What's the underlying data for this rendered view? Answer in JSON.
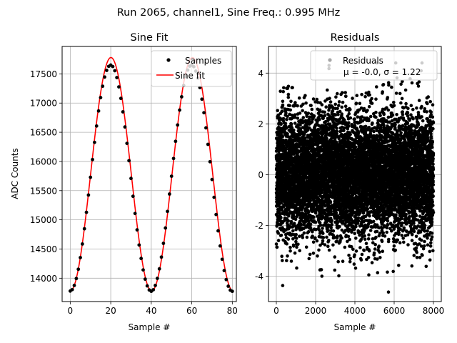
{
  "figure": {
    "suptitle": "Run 2065, channel1, Sine Freq.: 0.995 MHz"
  },
  "chart_data": [
    {
      "type": "line",
      "title": "Sine Fit",
      "xlabel": "Sample #",
      "ylabel": "ADC Counts",
      "xlim": [
        -4,
        82
      ],
      "ylim": [
        13600,
        17970
      ],
      "xticks": [
        0,
        20,
        40,
        60,
        80
      ],
      "yticks": [
        14000,
        14500,
        15000,
        15500,
        16000,
        16500,
        17000,
        17500
      ],
      "grid": true,
      "legend_position": "top-right",
      "sine_model": {
        "amplitude": 2000,
        "offset": 15780,
        "period_samples": 40.2,
        "peak_sample": 20.1
      },
      "series": [
        {
          "name": "Samples",
          "style": "black dot markers",
          "color": "#000000",
          "x": [
            0,
            1,
            2,
            3,
            4,
            5,
            6,
            7,
            8,
            9,
            10,
            11,
            12,
            13,
            14,
            15,
            16,
            17,
            18,
            19,
            20,
            21,
            22,
            23,
            24,
            25,
            26,
            27,
            28,
            29,
            30,
            31,
            32,
            33,
            34,
            35,
            36,
            37,
            38,
            39,
            40,
            41,
            42,
            43,
            44,
            45,
            46,
            47,
            48,
            49,
            50,
            51,
            52,
            53,
            54,
            55,
            56,
            57,
            58,
            59,
            60,
            61,
            62,
            63,
            64,
            65,
            66,
            67,
            68,
            69,
            70,
            71,
            72,
            73,
            74,
            75,
            76,
            77,
            78,
            79,
            80
          ],
          "values": [
            13780,
            13805,
            13876,
            13994,
            14154,
            14353,
            14586,
            14847,
            15129,
            15425,
            15729,
            16032,
            16327,
            16607,
            16865,
            17094,
            17289,
            17446,
            17560,
            17629,
            17651,
            17626,
            17554,
            17437,
            17277,
            17080,
            16850,
            16591,
            16310,
            16013,
            15709,
            15404,
            15109,
            14828,
            14569,
            14338,
            14142,
            13984,
            13868,
            13798,
            13775,
            13802,
            13876,
            13997,
            14160,
            14362,
            14597,
            14860,
            15144,
            15442,
            15747,
            16050,
            16345,
            16625,
            16880,
            17108,
            17301,
            17455,
            17566,
            17632,
            17651,
            17623,
            17547,
            17428,
            17266,
            17067,
            16835,
            16575,
            16293,
            15995,
            15691,
            15386,
            15091,
            14811,
            14553,
            14324,
            14131,
            13976,
            13863,
            13795,
            13776
          ]
        },
        {
          "name": "Sine fit",
          "style": "solid line",
          "color": "#ff0000"
        }
      ]
    },
    {
      "type": "scatter",
      "title": "Residuals",
      "xlabel": "Sample #",
      "ylabel": "",
      "xlim": [
        -400,
        8400
      ],
      "ylim": [
        -5.0,
        5.05
      ],
      "xticks": [
        0,
        2000,
        4000,
        6000,
        8000
      ],
      "yticks": [
        -4,
        -2,
        0,
        2,
        4
      ],
      "grid": true,
      "legend_position": "top-right",
      "n_points": 8000,
      "series": [
        {
          "name": "Residuals",
          "color": "#000000",
          "mean": -0.0,
          "std": 1.22,
          "stats_label": "μ = -0.0, σ = 1.22"
        }
      ]
    }
  ]
}
